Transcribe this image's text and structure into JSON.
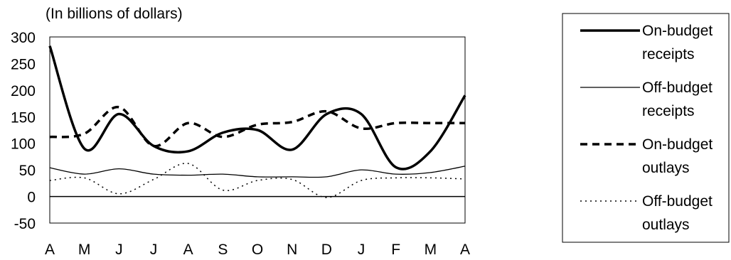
{
  "chart_data": {
    "type": "line",
    "subtitle": "(In billions of dollars)",
    "x": [
      "A",
      "M",
      "J",
      "J",
      "A",
      "S",
      "O",
      "N",
      "D",
      "J",
      "F",
      "M",
      "A"
    ],
    "ylim": [
      -50,
      300
    ],
    "yticks": [
      300,
      250,
      200,
      150,
      100,
      50,
      0,
      -50
    ],
    "legend_position": "right",
    "series": [
      {
        "name": "On-budget receipts",
        "style": "solid-thick",
        "color": "#000000",
        "values": [
          283,
          90,
          155,
          95,
          85,
          120,
          125,
          88,
          155,
          155,
          55,
          85,
          190
        ]
      },
      {
        "name": "Off-budget receipts",
        "style": "solid-thin",
        "color": "#000000",
        "values": [
          54,
          42,
          52,
          42,
          40,
          42,
          37,
          37,
          37,
          50,
          42,
          45,
          57
        ]
      },
      {
        "name": "On-budget outlays",
        "style": "dashed-thick",
        "color": "#000000",
        "values": [
          112,
          118,
          168,
          95,
          138,
          112,
          135,
          140,
          160,
          128,
          138,
          138,
          138
        ]
      },
      {
        "name": "Off-budget outlays",
        "style": "dotted-thin",
        "color": "#000000",
        "values": [
          30,
          35,
          5,
          32,
          62,
          12,
          30,
          32,
          -2,
          30,
          35,
          35,
          33
        ]
      }
    ],
    "legend": {
      "items": [
        {
          "series": 0,
          "line1": "On-budget",
          "line2": "receipts"
        },
        {
          "series": 1,
          "line1": "Off-budget",
          "line2": "receipts"
        },
        {
          "series": 2,
          "line1": "On-budget",
          "line2": "outlays"
        },
        {
          "series": 3,
          "line1": "Off-budget",
          "line2": "outlays"
        }
      ]
    }
  }
}
